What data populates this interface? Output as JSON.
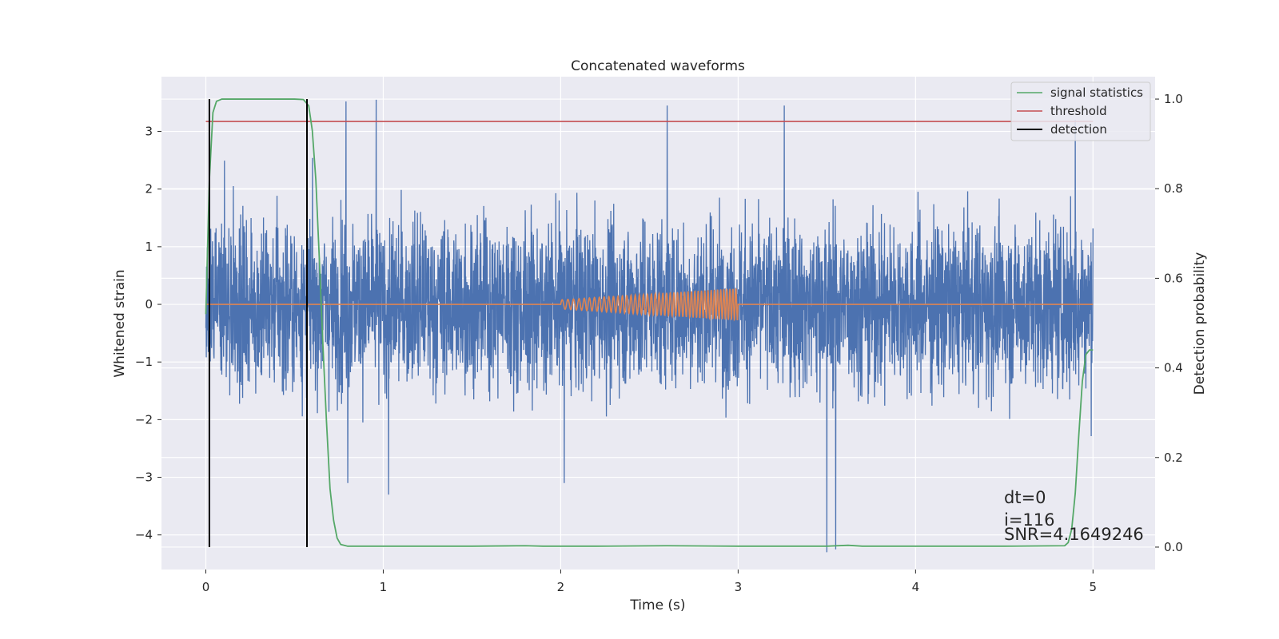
{
  "chart_data": {
    "type": "line",
    "title": "Concatenated waveforms",
    "xlabel": "Time (s)",
    "ylabel_left": "Whitened strain",
    "ylabel_right": "Detection probability",
    "xlim": [
      -0.25,
      5.35
    ],
    "ylim_left": [
      -4.6,
      3.95
    ],
    "ylim_right": [
      -0.05,
      1.05
    ],
    "x_ticks": [
      0,
      1,
      2,
      3,
      4,
      5
    ],
    "x_tick_labels": [
      "0",
      "1",
      "2",
      "3",
      "4",
      "5"
    ],
    "y_ticks_left": [
      -4,
      -3,
      -2,
      -1,
      0,
      1,
      2,
      3
    ],
    "y_tick_labels_left": [
      "−4",
      "−3",
      "−2",
      "−1",
      "0",
      "1",
      "2",
      "3"
    ],
    "y_ticks_right": [
      0.0,
      0.2,
      0.4,
      0.6,
      0.8,
      1.0
    ],
    "y_tick_labels_right": [
      "0.0",
      "0.2",
      "0.4",
      "0.6",
      "0.8",
      "1.0"
    ],
    "grid": true,
    "legend_position": "top-right",
    "series": [
      {
        "name": "",
        "kind": "whitened-strain-noise",
        "color": "#4c72b0",
        "axis": "left",
        "x_range": [
          0,
          5
        ],
        "approx_range": [
          -4.3,
          3.55
        ],
        "peaks": [
          {
            "x": 0.79,
            "y": 3.52
          },
          {
            "x": 0.96,
            "y": 3.55
          },
          {
            "x": 2.6,
            "y": 3.45
          },
          {
            "x": 3.26,
            "y": 3.45
          },
          {
            "x": 4.9,
            "y": 3.2
          },
          {
            "x": 3.5,
            "y": -4.3
          },
          {
            "x": 3.55,
            "y": -4.25
          },
          {
            "x": 1.03,
            "y": -3.3
          },
          {
            "x": 0.8,
            "y": -3.1
          },
          {
            "x": 2.02,
            "y": -3.1
          }
        ]
      },
      {
        "name": "",
        "kind": "injected-chirp",
        "color": "#dd8452",
        "axis": "left",
        "x_range": [
          0,
          5
        ],
        "chirp_start": 2.0,
        "chirp_end": 3.0,
        "amplitude_start": 0.08,
        "amplitude_end": 0.28,
        "freq_start_hz": 30,
        "freq_end_hz": 60
      },
      {
        "name": "signal statistics",
        "color": "#55a868",
        "axis": "right",
        "x": [
          0.0,
          0.02,
          0.04,
          0.06,
          0.09,
          0.15,
          0.3,
          0.5,
          0.55,
          0.58,
          0.6,
          0.62,
          0.64,
          0.66,
          0.68,
          0.7,
          0.72,
          0.74,
          0.76,
          0.8,
          1.0,
          1.5,
          1.8,
          1.9,
          2.2,
          2.6,
          3.0,
          3.5,
          3.62,
          3.7,
          4.0,
          4.5,
          4.84,
          4.86,
          4.88,
          4.9,
          4.92,
          4.94,
          4.96,
          4.98,
          5.0
        ],
        "y": [
          0.52,
          0.82,
          0.97,
          0.995,
          1.0,
          1.0,
          1.0,
          1.0,
          0.999,
          0.985,
          0.93,
          0.82,
          0.64,
          0.45,
          0.28,
          0.13,
          0.06,
          0.02,
          0.006,
          0.002,
          0.002,
          0.002,
          0.003,
          0.002,
          0.002,
          0.003,
          0.002,
          0.002,
          0.004,
          0.002,
          0.002,
          0.002,
          0.003,
          0.01,
          0.04,
          0.12,
          0.25,
          0.37,
          0.43,
          0.44,
          0.44
        ]
      },
      {
        "name": "threshold",
        "color": "#c44e52",
        "axis": "right",
        "x": [
          0,
          5
        ],
        "y": [
          0.95,
          0.95
        ]
      },
      {
        "name": "detection",
        "color": "#000000",
        "axis": "right",
        "type": "vlines",
        "x": [
          0.02,
          0.57
        ],
        "y_range": [
          0.0,
          1.0
        ]
      }
    ],
    "annotations": [
      "dt=0",
      "i=116",
      "SNR=4.1649246"
    ]
  }
}
